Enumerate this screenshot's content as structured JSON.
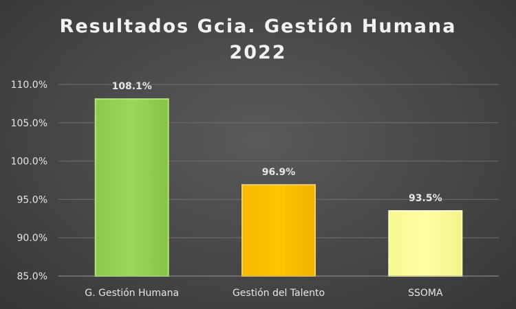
{
  "chart_data": {
    "type": "bar",
    "title_lines": [
      "Resultados Gcia. Gestión Humana",
      "2022"
    ],
    "categories": [
      "G. Gestión Humana",
      "Gestión del Talento",
      "SSOMA"
    ],
    "values": [
      108.1,
      96.9,
      93.5
    ],
    "data_labels": [
      "108.1%",
      "96.9%",
      "93.5%"
    ],
    "ylim": [
      85,
      110
    ],
    "yticks": [
      85,
      90,
      95,
      100,
      105,
      110
    ],
    "ytick_labels": [
      "85.0%",
      "90.0%",
      "95.0%",
      "100.0%",
      "105.0%",
      "110.0%"
    ],
    "grid": true,
    "legend": "none",
    "colors": {
      "bars": [
        "#92d050",
        "#ffc000",
        "#ffff99"
      ],
      "bar_edges": [
        "#b6e57a",
        "#ffd34d",
        "#ffffc2"
      ],
      "text": "#e6e6e6",
      "grid": "#6e6e6e",
      "axis": "#9a9a9a",
      "background": "#4a4a4a"
    }
  }
}
